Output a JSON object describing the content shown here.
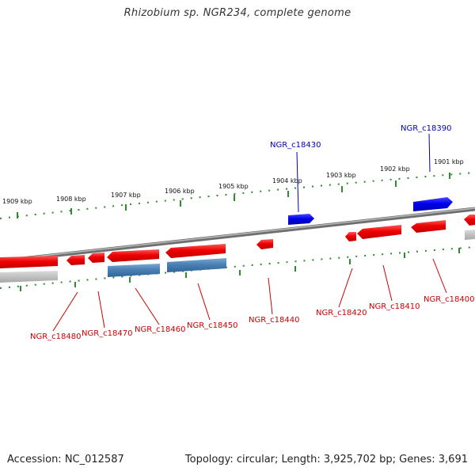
{
  "title": "Rhizobium sp. NGR234, complete genome",
  "footer": {
    "accession": "Accession: NC_012587",
    "topology": "Topology: circular; Length: 3,925,702 bp; Genes: 3,691"
  },
  "colors": {
    "forward_gene": "#0000ee",
    "reverse_gene": "#ee0000",
    "rna_gene": "#4a80b4",
    "pseudo": "#bbbbbb",
    "tick": "#228b22",
    "backbone": "#888888"
  },
  "kbp_labels": [
    "1909 kbp",
    "1908 kbp",
    "1907 kbp",
    "1906 kbp",
    "1905 kbp",
    "1904 kbp",
    "1903 kbp",
    "1902 kbp",
    "1901 kbp"
  ],
  "genes": [
    {
      "label": "NGR_c18390",
      "strand": "forward"
    },
    {
      "label": "NGR_c18430",
      "strand": "forward"
    },
    {
      "label": "NGR_c18400",
      "strand": "reverse"
    },
    {
      "label": "NGR_c18410",
      "strand": "reverse"
    },
    {
      "label": "NGR_c18420",
      "strand": "reverse"
    },
    {
      "label": "NGR_c18440",
      "strand": "reverse"
    },
    {
      "label": "NGR_c18450",
      "strand": "reverse"
    },
    {
      "label": "NGR_c18460",
      "strand": "reverse"
    },
    {
      "label": "NGR_c18470",
      "strand": "reverse"
    },
    {
      "label": "NGR_c18480",
      "strand": "reverse"
    }
  ]
}
